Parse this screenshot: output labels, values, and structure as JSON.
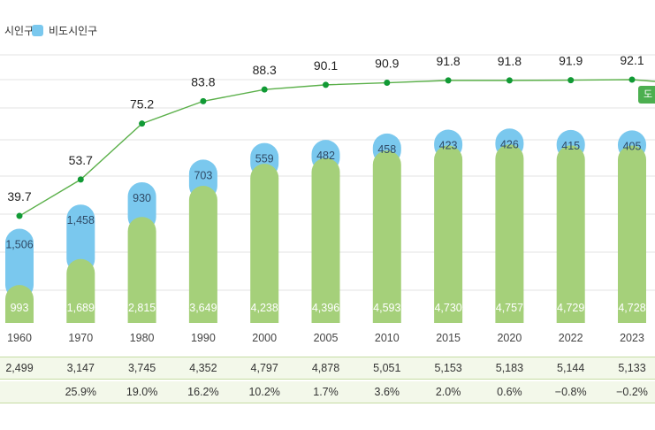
{
  "legend": {
    "urban": {
      "label": "시인구",
      "color": "#a5d07a"
    },
    "rural": {
      "label": "비도시인구",
      "color": "#7ac8ee"
    }
  },
  "badge": {
    "label": "도"
  },
  "chart_data": {
    "type": "bar",
    "stacked": true,
    "categories": [
      "1960",
      "1970",
      "1980",
      "1990",
      "2000",
      "2005",
      "2010",
      "2015",
      "2020",
      "2022",
      "2023"
    ],
    "series": [
      {
        "name": "시인구",
        "key": "urban",
        "values": [
          993,
          1689,
          2815,
          3649,
          4238,
          4396,
          4593,
          4730,
          4757,
          4729,
          4728
        ],
        "labels": [
          "993",
          "1,689",
          "2,815",
          "3,649",
          "4,238",
          "4,396",
          "4,593",
          "4,730",
          "4,757",
          "4,729",
          "4,728"
        ],
        "color": "#a5d07a"
      },
      {
        "name": "비도시인구",
        "key": "rural",
        "values": [
          1506,
          1458,
          930,
          703,
          559,
          482,
          458,
          423,
          426,
          415,
          405
        ],
        "labels": [
          "1,506",
          "1,458",
          "930",
          "703",
          "559",
          "482",
          "458",
          "423",
          "426",
          "415",
          "405"
        ],
        "color": "#7ac8ee"
      }
    ],
    "line": {
      "values": [
        39.7,
        53.7,
        75.2,
        83.8,
        88.3,
        90.1,
        90.9,
        91.8,
        91.8,
        91.9,
        92.1
      ],
      "color": "#5bb04a",
      "point_color": "#119a35"
    },
    "totals": [
      "2,499",
      "3,147",
      "3,745",
      "4,352",
      "4,797",
      "4,878",
      "5,051",
      "5,153",
      "5,183",
      "5,144",
      "5,133"
    ],
    "growth": [
      "",
      "25.9%",
      "19.0%",
      "16.2%",
      "10.2%",
      "1.7%",
      "3.6%",
      "2.0%",
      "0.6%",
      "−0.8%",
      "−0.2%"
    ],
    "grid": true
  }
}
